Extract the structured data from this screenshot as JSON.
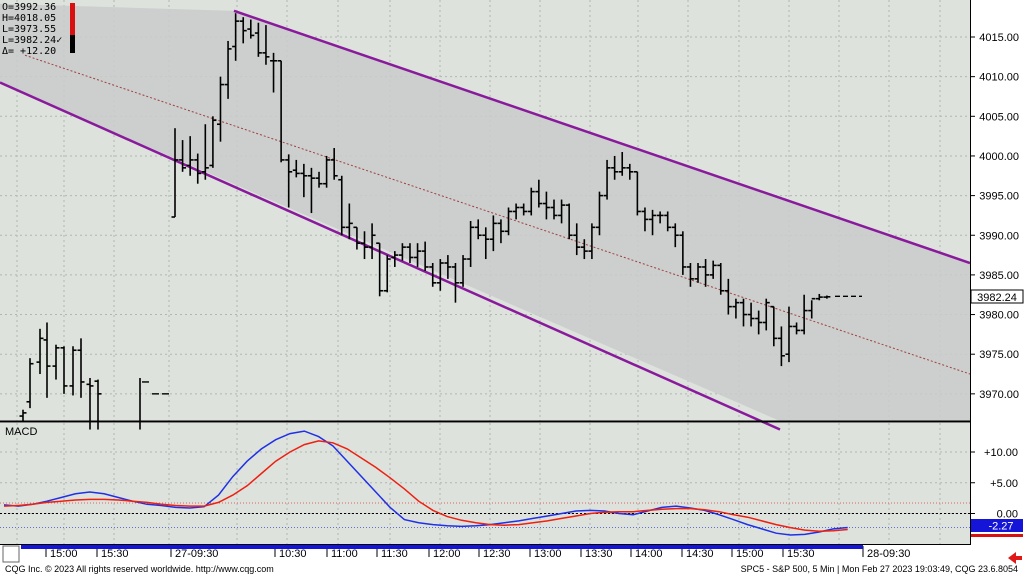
{
  "header": {
    "open": "O=3992.36",
    "high": "H=4018.05",
    "low": "L=3973.55",
    "last": "L=3982.24",
    "last_mark": "✓",
    "delta": "Δ= +12.20"
  },
  "last_price_label": "3982.24",
  "macd": {
    "title": "MACD",
    "last_value_label": "-2.27",
    "y_ticks": [
      "+10.00",
      "+5.00",
      "0.00"
    ]
  },
  "footer": {
    "copyright": "CQG Inc. © 2023 All rights reserved worldwide. http://www.cqg.com",
    "info": "SPC5 - S&P 500, 5 Min | Mon Feb 27 2023 19:03:49, CQG 23.6.8054"
  },
  "colors": {
    "background": "#dde2dd",
    "channel": "#8a1a9c",
    "fill": "#c9cbcb",
    "macd_line": "#2030e6",
    "signal_line": "#ee2010",
    "accent_red": "#d81010",
    "axis_blue": "#1515d8"
  },
  "chart_data": [
    {
      "type": "ohlc",
      "y_ticks": [
        4015,
        4010,
        4005,
        4000,
        3995,
        3990,
        3985,
        3980,
        3975,
        3970
      ],
      "y_tick_labels": [
        "4015.00",
        "4010.00",
        "4005.00",
        "4000.00",
        "3995.00",
        "3990.00",
        "3985.00",
        "3980.00",
        "3975.00",
        "3970.00"
      ],
      "ylim": [
        3966,
        4020
      ],
      "x_tick_labels": [
        "15:00",
        "15:30",
        "27-09:30",
        "10:30",
        "11:00",
        "11:30",
        "12:00",
        "12:30",
        "13:00",
        "13:30",
        "14:00",
        "14:30",
        "15:00",
        "15:30",
        "28-09:30"
      ],
      "grid": true,
      "bars": [
        [
          3967.2,
          3968.0,
          3966.5,
          3967.6
        ],
        [
          3969.0,
          3974.5,
          3968.2,
          3973.8
        ],
        [
          3974.0,
          3978.2,
          3972.5,
          3977.0
        ],
        [
          3976.8,
          3979.0,
          3969.5,
          3973.5
        ],
        [
          3973.5,
          3976.2,
          3971.8,
          3975.8
        ],
        [
          3975.8,
          3976.0,
          3970.0,
          3971.0
        ],
        [
          3971.0,
          3976.0,
          3969.8,
          3975.5
        ],
        [
          3975.5,
          3977.0,
          3969.5,
          3971.5
        ],
        [
          3971.2,
          3972.0,
          3965.5,
          3971.0
        ],
        [
          3971.6,
          3971.8,
          3965.5,
          3970.0
        ],
        [
          3992.3,
          4003.5,
          3992.3,
          3999.5
        ],
        [
          3999.5,
          4002.0,
          3998.0,
          3998.5
        ],
        [
          3998.8,
          4002.5,
          3997.5,
          3999.5
        ],
        [
          3999.5,
          4000.3,
          3996.5,
          3997.8
        ],
        [
          3998.0,
          4004.0,
          3997.0,
          3998.5
        ],
        [
          3998.8,
          4005.0,
          3998.5,
          4004.5
        ],
        [
          4004.0,
          4010.0,
          4001.8,
          4009.0
        ],
        [
          4009.0,
          4014.5,
          4007.2,
          4013.5
        ],
        [
          4013.8,
          4018.0,
          4012.0,
          4017.0
        ],
        [
          4017.0,
          4017.5,
          4014.2,
          4015.8
        ],
        [
          4016.0,
          4017.2,
          4014.8,
          4015.2
        ],
        [
          4015.5,
          4016.8,
          4012.5,
          4013.0
        ],
        [
          4013.0,
          4016.5,
          4011.5,
          4012.5
        ],
        [
          4012.0,
          4013.0,
          4008.0,
          4012.0
        ],
        [
          4012.0,
          4012.0,
          3999.2,
          3999.5
        ],
        [
          3999.5,
          4000.2,
          3993.5,
          3998.0
        ],
        [
          3998.2,
          3999.5,
          3997.3,
          3997.8
        ],
        [
          3997.8,
          3999.0,
          3994.8,
          3997.5
        ],
        [
          3997.5,
          3998.5,
          3992.8,
          3997.2
        ],
        [
          3997.2,
          3998.0,
          3996.0,
          3996.5
        ],
        [
          3996.5,
          4000.0,
          3996.0,
          3999.5
        ],
        [
          3999.5,
          4001.0,
          3997.0,
          3997.5
        ],
        [
          3997.0,
          3997.5,
          3990.0,
          3991.0
        ],
        [
          3991.0,
          3994.0,
          3989.5,
          3991.5
        ],
        [
          3991.0,
          3991.0,
          3988.2,
          3989.0
        ],
        [
          3989.0,
          3990.5,
          3987.0,
          3988.5
        ],
        [
          3988.5,
          3991.5,
          3987.0,
          3990.0
        ],
        [
          3989.0,
          3989.0,
          3982.3,
          3983.0
        ],
        [
          3983.0,
          3987.5,
          3982.8,
          3987.0
        ],
        [
          3987.2,
          3988.0,
          3986.0,
          3987.5
        ],
        [
          3987.5,
          3989.0,
          3986.8,
          3988.5
        ],
        [
          3988.5,
          3989.0,
          3986.5,
          3987.2
        ],
        [
          3987.2,
          3989.0,
          3986.0,
          3988.0
        ],
        [
          3988.0,
          3989.2,
          3985.5,
          3986.0
        ],
        [
          3986.0,
          3986.5,
          3983.5,
          3984.0
        ],
        [
          3984.0,
          3987.0,
          3983.0,
          3986.5
        ],
        [
          3986.5,
          3987.5,
          3984.5,
          3986.0
        ],
        [
          3986.0,
          3986.5,
          3981.5,
          3984.0
        ],
        [
          3984.0,
          3987.5,
          3983.5,
          3987.0
        ],
        [
          3987.0,
          3991.8,
          3986.0,
          3991.0
        ],
        [
          3991.0,
          3992.0,
          3989.5,
          3990.0
        ],
        [
          3990.0,
          3991.0,
          3987.0,
          3989.5
        ],
        [
          3989.5,
          3992.5,
          3988.0,
          3991.5
        ],
        [
          3991.5,
          3992.0,
          3989.0,
          3990.5
        ],
        [
          3990.5,
          3993.5,
          3990.0,
          3993.0
        ],
        [
          3993.0,
          3994.0,
          3992.0,
          3993.5
        ],
        [
          3993.5,
          3994.0,
          3992.5,
          3993.0
        ],
        [
          3993.0,
          3996.0,
          3992.5,
          3995.5
        ],
        [
          3995.5,
          3997.0,
          3993.5,
          3994.0
        ],
        [
          3994.0,
          3995.5,
          3992.0,
          3993.5
        ],
        [
          3993.5,
          3994.5,
          3992.0,
          3992.5
        ],
        [
          3992.5,
          3994.5,
          3991.5,
          3993.8
        ],
        [
          3993.8,
          3994.0,
          3989.5,
          3990.0
        ],
        [
          3990.0,
          3991.5,
          3987.5,
          3988.5
        ],
        [
          3988.5,
          3989.5,
          3987.0,
          3988.0
        ],
        [
          3988.0,
          3991.5,
          3987.0,
          3991.0
        ],
        [
          3991.0,
          3995.5,
          3990.0,
          3995.0
        ],
        [
          3995.0,
          3999.5,
          3994.5,
          3998.5
        ],
        [
          3998.5,
          4000.0,
          3997.0,
          3998.0
        ],
        [
          3998.0,
          4000.5,
          3997.5,
          3998.5
        ],
        [
          3998.5,
          3999.0,
          3997.0,
          3998.0
        ],
        [
          3998.0,
          3998.0,
          3992.5,
          3993.0
        ],
        [
          3993.0,
          3993.5,
          3990.5,
          3992.0
        ],
        [
          3992.0,
          3993.2,
          3990.0,
          3992.5
        ],
        [
          3992.5,
          3993.0,
          3991.5,
          3992.5
        ],
        [
          3992.5,
          3993.0,
          3990.5,
          3991.0
        ],
        [
          3991.0,
          3991.5,
          3988.5,
          3990.0
        ],
        [
          3990.0,
          3990.5,
          3985.0,
          3986.0
        ],
        [
          3986.0,
          3986.5,
          3983.5,
          3984.5
        ],
        [
          3984.5,
          3986.5,
          3984.0,
          3986.0
        ],
        [
          3986.0,
          3987.0,
          3983.5,
          3985.0
        ],
        [
          3985.0,
          3986.8,
          3984.5,
          3986.2
        ],
        [
          3986.2,
          3986.5,
          3982.5,
          3983.0
        ],
        [
          3983.0,
          3984.5,
          3980.0,
          3981.0
        ],
        [
          3981.0,
          3982.0,
          3979.5,
          3981.5
        ],
        [
          3981.5,
          3982.0,
          3978.5,
          3980.0
        ],
        [
          3980.0,
          3981.5,
          3978.5,
          3979.5
        ],
        [
          3979.5,
          3980.5,
          3977.5,
          3979.0
        ],
        [
          3979.0,
          3982.0,
          3978.0,
          3981.5
        ],
        [
          3981.0,
          3981.0,
          3976.0,
          3977.0
        ],
        [
          3977.0,
          3978.5,
          3973.5,
          3974.8
        ],
        [
          3975.0,
          3981.0,
          3974.0,
          3978.5
        ],
        [
          3978.5,
          3979.0,
          3977.5,
          3978.0
        ],
        [
          3978.0,
          3982.5,
          3977.5,
          3980.5
        ],
        [
          3980.5,
          3981.8,
          3979.5,
          3982.0
        ],
        [
          3982.0,
          3982.6,
          3981.8,
          3982.2
        ],
        [
          3982.2,
          3982.4,
          3982.0,
          3982.24
        ]
      ],
      "partial_session_bars": [
        {
          "time_index": 10,
          "price": 3971.5
        },
        {
          "time_index": 11,
          "price": 3970.0
        },
        {
          "time_index": 12,
          "price": 3970.0
        }
      ],
      "channel": {
        "upper": [
          [
            4018.3,
            3986.5
          ]
        ],
        "lower": [
          [
            3999.5,
            3965.5
          ]
        ],
        "mid_start": 4012.7,
        "mid_end": 3972.5
      }
    },
    {
      "type": "line",
      "title": "MACD",
      "ylim": [
        -5,
        15
      ],
      "y_ticks": [
        10,
        5,
        0
      ],
      "reference_levels": [
        1.7,
        -2.27
      ],
      "series": [
        {
          "values": [
            1.4,
            1.2,
            1.5,
            2.0,
            2.6,
            3.2,
            3.5,
            3.2,
            2.6,
            2.0,
            1.5,
            1.3,
            1.0,
            0.9,
            1.1,
            3.0,
            6.0,
            8.5,
            10.5,
            12.0,
            13.0,
            13.4,
            12.5,
            11.0,
            8.5,
            6.0,
            3.5,
            1.0,
            -1.0,
            -1.5,
            -1.8,
            -2.0,
            -2.1,
            -2.0,
            -1.8,
            -1.5,
            -1.2,
            -0.8,
            -0.4,
            0.0,
            0.4,
            0.5,
            0.4,
            0.0,
            -0.2,
            0.4,
            1.0,
            1.2,
            0.9,
            0.5,
            -0.2,
            -1.0,
            -1.8,
            -2.5,
            -3.2,
            -3.5,
            -3.4,
            -3.0,
            -2.5,
            -2.27
          ]
        },
        {
          "values": [
            1.2,
            1.3,
            1.5,
            1.8,
            2.0,
            2.2,
            2.3,
            2.3,
            2.2,
            2.0,
            1.8,
            1.5,
            1.3,
            1.2,
            1.2,
            1.8,
            3.0,
            4.5,
            6.5,
            8.5,
            10.0,
            11.2,
            11.8,
            11.5,
            10.5,
            9.0,
            7.5,
            5.8,
            4.0,
            2.0,
            0.5,
            -0.5,
            -1.1,
            -1.5,
            -1.8,
            -1.9,
            -1.8,
            -1.5,
            -1.2,
            -0.8,
            -0.4,
            0.0,
            0.2,
            0.3,
            0.3,
            0.5,
            0.7,
            0.8,
            0.8,
            0.6,
            0.3,
            -0.2,
            -0.6,
            -1.2,
            -1.8,
            -2.3,
            -2.7,
            -2.9,
            -2.8,
            -2.6
          ]
        }
      ]
    }
  ]
}
